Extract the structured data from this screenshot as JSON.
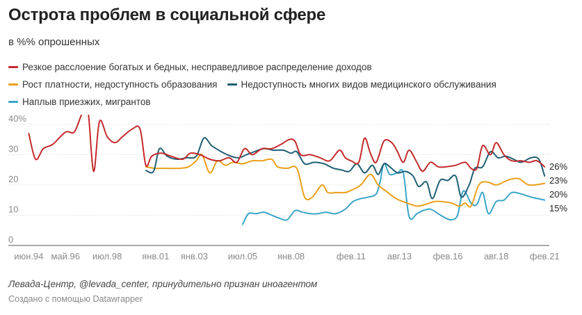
{
  "header": {
    "title": "Острота проблем в социальной сфере",
    "subtitle": "в %% опрошенных"
  },
  "footer": {
    "source": "Левада-Центр, @levada_center, принудительно признан иноагентом",
    "credit": "Создано с помощью Datawrapper"
  },
  "chart_data": {
    "type": "line",
    "ylim": [
      0,
      40
    ],
    "y_ticks": [
      0,
      10,
      20,
      30,
      40
    ],
    "y_tick_labels": [
      "0",
      "10",
      "20",
      "30",
      "40%"
    ],
    "xlim": [
      1994.4,
      2021.2
    ],
    "x_ticks": [
      {
        "x": 1994.45,
        "label": "июн.94"
      },
      {
        "x": 1996.35,
        "label": "май.96"
      },
      {
        "x": 1998.5,
        "label": "июл.98"
      },
      {
        "x": 2001.0,
        "label": "янв.01"
      },
      {
        "x": 2003.0,
        "label": "янв.03"
      },
      {
        "x": 2005.5,
        "label": "июл.05"
      },
      {
        "x": 2008.0,
        "label": "янв.08"
      },
      {
        "x": 2011.1,
        "label": "фев.11"
      },
      {
        "x": 2013.6,
        "label": "авг.13"
      },
      {
        "x": 2016.1,
        "label": "фев.16"
      },
      {
        "x": 2018.6,
        "label": "авг.18"
      },
      {
        "x": 2021.1,
        "label": "фев.21"
      }
    ],
    "grid": true,
    "legend_position": "top",
    "series": [
      {
        "name": "Резкое расслоение богатых и бедных, несправедливое распределение доходов",
        "color": "#c52a2b",
        "end_label": "26%",
        "points": [
          [
            1994.45,
            37
          ],
          [
            1994.8,
            28.5
          ],
          [
            1995.2,
            32
          ],
          [
            1995.7,
            33.5
          ],
          [
            1996.35,
            37.5
          ],
          [
            1996.8,
            37.5
          ],
          [
            1997.2,
            43.5
          ],
          [
            1997.5,
            45
          ],
          [
            1997.8,
            24.5
          ],
          [
            1998.1,
            41
          ],
          [
            1998.5,
            36
          ],
          [
            1998.9,
            34
          ],
          [
            1999.3,
            36
          ],
          [
            1999.8,
            38.5
          ],
          [
            2000.2,
            38.5
          ],
          [
            2000.5,
            26.5
          ],
          [
            2000.8,
            29.5
          ],
          [
            2001.3,
            30.5
          ],
          [
            2001.8,
            29.5
          ],
          [
            2002.4,
            28.5
          ],
          [
            2002.8,
            30.5
          ],
          [
            2003.3,
            30
          ],
          [
            2003.8,
            28.5
          ],
          [
            2004.3,
            28
          ],
          [
            2004.8,
            29
          ],
          [
            2005.2,
            27.5
          ],
          [
            2005.6,
            32
          ],
          [
            2006.0,
            30
          ],
          [
            2006.5,
            32
          ],
          [
            2007.0,
            32
          ],
          [
            2007.5,
            33.5
          ],
          [
            2007.9,
            35
          ],
          [
            2008.2,
            34.5
          ],
          [
            2008.5,
            30
          ],
          [
            2009.0,
            30
          ],
          [
            2009.5,
            29
          ],
          [
            2010.0,
            28
          ],
          [
            2010.5,
            31.5
          ],
          [
            2010.8,
            29
          ],
          [
            2011.1,
            28
          ],
          [
            2011.5,
            27.5
          ],
          [
            2011.8,
            35.5
          ],
          [
            2012.1,
            30.5
          ],
          [
            2012.4,
            27.5
          ],
          [
            2012.8,
            34.5
          ],
          [
            2013.2,
            34
          ],
          [
            2013.5,
            31
          ],
          [
            2013.8,
            27.5
          ],
          [
            2014.1,
            31.5
          ],
          [
            2014.5,
            27.5
          ],
          [
            2014.8,
            24.5
          ],
          [
            2015.2,
            27.5
          ],
          [
            2015.6,
            26
          ],
          [
            2016.0,
            26
          ],
          [
            2016.5,
            26.5
          ],
          [
            2017.0,
            27.5
          ],
          [
            2017.3,
            25.5
          ],
          [
            2017.6,
            25.5
          ],
          [
            2017.9,
            33
          ],
          [
            2018.3,
            30
          ],
          [
            2018.6,
            34
          ],
          [
            2019.0,
            30
          ],
          [
            2019.4,
            28
          ],
          [
            2019.9,
            28
          ],
          [
            2020.3,
            27.5
          ],
          [
            2020.7,
            28
          ],
          [
            2021.1,
            26
          ]
        ]
      },
      {
        "name": "Рост платности, недоступность образования",
        "color": "#e99f1a",
        "end_label": "20%",
        "points": [
          [
            2000.5,
            26
          ],
          [
            2001.0,
            25.5
          ],
          [
            2001.5,
            25.5
          ],
          [
            2002.2,
            25.5
          ],
          [
            2002.7,
            26
          ],
          [
            2003.1,
            28
          ],
          [
            2003.4,
            30
          ],
          [
            2003.8,
            24
          ],
          [
            2004.2,
            28
          ],
          [
            2004.6,
            26.5
          ],
          [
            2005.0,
            27.5
          ],
          [
            2005.5,
            27
          ],
          [
            2006.0,
            28
          ],
          [
            2006.5,
            28
          ],
          [
            2007.0,
            28.5
          ],
          [
            2007.3,
            26
          ],
          [
            2007.8,
            25.5
          ],
          [
            2008.3,
            25.5
          ],
          [
            2008.7,
            16
          ],
          [
            2009.1,
            16
          ],
          [
            2009.6,
            20
          ],
          [
            2009.9,
            17.5
          ],
          [
            2010.3,
            17.5
          ],
          [
            2010.8,
            17.5
          ],
          [
            2011.2,
            18.5
          ],
          [
            2011.6,
            20
          ],
          [
            2012.1,
            23.5
          ],
          [
            2012.5,
            20
          ],
          [
            2012.9,
            18
          ],
          [
            2013.3,
            16
          ],
          [
            2013.6,
            15
          ],
          [
            2014.0,
            14
          ],
          [
            2014.5,
            13
          ],
          [
            2014.9,
            13.5
          ],
          [
            2015.4,
            14.5
          ],
          [
            2015.8,
            14.5
          ],
          [
            2016.3,
            14
          ],
          [
            2016.7,
            13
          ],
          [
            2017.0,
            14
          ],
          [
            2017.3,
            13
          ],
          [
            2017.7,
            20
          ],
          [
            2018.1,
            21
          ],
          [
            2018.6,
            20
          ],
          [
            2019.0,
            21
          ],
          [
            2019.4,
            22
          ],
          [
            2019.8,
            22
          ],
          [
            2020.3,
            20
          ],
          [
            2021.1,
            20.5
          ]
        ]
      },
      {
        "name": "Недоступность многих видов медицинского обслуживания",
        "color": "#1f5e73",
        "end_label": "23%",
        "points": [
          [
            2000.5,
            24.8
          ],
          [
            2000.9,
            24.5
          ],
          [
            2001.2,
            32
          ],
          [
            2001.6,
            29.5
          ],
          [
            2002.1,
            28.5
          ],
          [
            2002.6,
            29
          ],
          [
            2003.1,
            29.5
          ],
          [
            2003.5,
            35.5
          ],
          [
            2003.9,
            33
          ],
          [
            2004.4,
            31
          ],
          [
            2004.9,
            29.5
          ],
          [
            2005.3,
            29
          ],
          [
            2005.7,
            30
          ],
          [
            2006.1,
            31
          ],
          [
            2006.6,
            32
          ],
          [
            2007.1,
            31.5
          ],
          [
            2007.6,
            31.5
          ],
          [
            2008.0,
            30.5
          ],
          [
            2008.3,
            31
          ],
          [
            2008.7,
            27
          ],
          [
            2009.2,
            27.5
          ],
          [
            2009.7,
            27
          ],
          [
            2010.2,
            25.5
          ],
          [
            2010.6,
            25
          ],
          [
            2011.0,
            24.5
          ],
          [
            2011.4,
            27
          ],
          [
            2011.8,
            24
          ],
          [
            2012.2,
            26.5
          ],
          [
            2012.5,
            23.5
          ],
          [
            2012.8,
            27
          ],
          [
            2013.1,
            26
          ],
          [
            2013.5,
            24
          ],
          [
            2013.9,
            24.5
          ],
          [
            2014.3,
            23
          ],
          [
            2014.6,
            19.5
          ],
          [
            2015.0,
            21
          ],
          [
            2015.3,
            15.5
          ],
          [
            2015.7,
            21.5
          ],
          [
            2016.1,
            21.5
          ],
          [
            2016.5,
            23
          ],
          [
            2016.8,
            16
          ],
          [
            2017.2,
            20
          ],
          [
            2017.5,
            25.5
          ],
          [
            2017.9,
            26
          ],
          [
            2018.3,
            31
          ],
          [
            2018.7,
            29
          ],
          [
            2019.1,
            29.5
          ],
          [
            2019.5,
            28.5
          ],
          [
            2019.9,
            27.5
          ],
          [
            2020.4,
            29
          ],
          [
            2020.8,
            28.5
          ],
          [
            2021.1,
            23
          ]
        ]
      },
      {
        "name": "Наплыв приезжих, мигрантов",
        "color": "#3aa5c8",
        "end_label": "15%",
        "points": [
          [
            2005.5,
            7
          ],
          [
            2005.8,
            10.5
          ],
          [
            2006.2,
            10.5
          ],
          [
            2006.6,
            11
          ],
          [
            2007.0,
            10
          ],
          [
            2007.4,
            9
          ],
          [
            2007.8,
            8.5
          ],
          [
            2008.2,
            11.5
          ],
          [
            2008.6,
            11
          ],
          [
            2009.0,
            10.5
          ],
          [
            2009.4,
            10.5
          ],
          [
            2009.8,
            11
          ],
          [
            2010.3,
            10.5
          ],
          [
            2010.8,
            12
          ],
          [
            2011.2,
            14.5
          ],
          [
            2011.6,
            15.5
          ],
          [
            2012.0,
            16
          ],
          [
            2012.4,
            17
          ],
          [
            2012.6,
            21
          ],
          [
            2012.8,
            27
          ],
          [
            2013.1,
            23.5
          ],
          [
            2013.5,
            24
          ],
          [
            2013.8,
            24
          ],
          [
            2014.1,
            9.5
          ],
          [
            2014.5,
            10.5
          ],
          [
            2014.8,
            11.5
          ],
          [
            2015.2,
            12
          ],
          [
            2015.6,
            10.5
          ],
          [
            2016.0,
            9
          ],
          [
            2016.3,
            8.5
          ],
          [
            2016.6,
            10
          ],
          [
            2016.9,
            18
          ],
          [
            2017.3,
            14
          ],
          [
            2017.6,
            13.5
          ],
          [
            2017.9,
            17.5
          ],
          [
            2018.2,
            10.5
          ],
          [
            2018.6,
            14.5
          ],
          [
            2019.0,
            15
          ],
          [
            2019.4,
            17.5
          ],
          [
            2019.9,
            17
          ],
          [
            2020.4,
            16
          ],
          [
            2021.1,
            15
          ]
        ]
      }
    ]
  }
}
